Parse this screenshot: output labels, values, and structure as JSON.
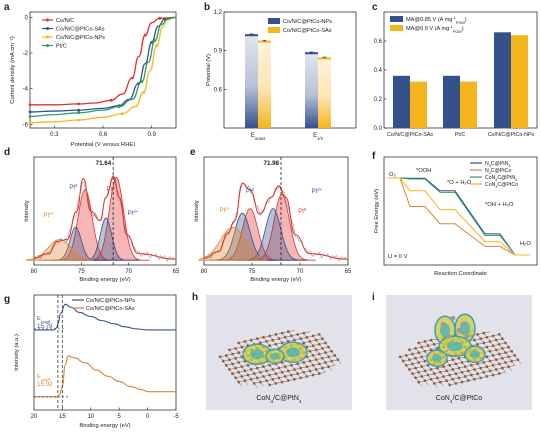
{
  "panel_letters": [
    "a",
    "b",
    "c",
    "d",
    "e",
    "f",
    "g",
    "h",
    "i"
  ],
  "colors": {
    "red": "#e0302d",
    "blue": "#34518c",
    "yellow": "#f5b51c",
    "green": "#2e9e6f",
    "orange": "#e0832f",
    "gray": "#9c9c9c",
    "purple": "#8a7fb4"
  },
  "chart_data": [
    {
      "panel": "a",
      "type": "line",
      "xlabel": "Potential (V versus RHE)",
      "ylabel": "Current density (mA cm⁻²)",
      "xticks": [
        "0.3",
        "0.6",
        "0.9"
      ],
      "yticks": [
        "0",
        "-2",
        "-4",
        "-6"
      ],
      "xlim": [
        0.15,
        1.05
      ],
      "ylim": [
        -6.2,
        0.3
      ],
      "series": [
        {
          "name": "Co/N/C",
          "color": "#e0302d",
          "x": [
            0.15,
            0.3,
            0.45,
            0.55,
            0.65,
            0.72,
            0.78,
            0.82,
            0.86,
            0.9,
            0.95,
            1.05
          ],
          "y": [
            -4.9,
            -4.9,
            -4.85,
            -4.8,
            -4.65,
            -4.3,
            -3.4,
            -2.2,
            -1.0,
            -0.3,
            -0.05,
            0
          ]
        },
        {
          "name": "Co/N/C@PtCo-SAs",
          "color": "#34518c",
          "x": [
            0.15,
            0.3,
            0.45,
            0.6,
            0.7,
            0.76,
            0.82,
            0.86,
            0.9,
            0.94,
            0.98,
            1.05
          ],
          "y": [
            -5.3,
            -5.25,
            -5.2,
            -5.1,
            -4.95,
            -4.6,
            -3.7,
            -2.6,
            -1.4,
            -0.5,
            -0.1,
            0
          ]
        },
        {
          "name": "Co/N/C@PtCo-NPs",
          "color": "#f5b51c",
          "x": [
            0.15,
            0.3,
            0.45,
            0.6,
            0.72,
            0.8,
            0.85,
            0.89,
            0.93,
            0.97,
            1.0,
            1.05
          ],
          "y": [
            -5.9,
            -5.85,
            -5.75,
            -5.6,
            -5.4,
            -5.0,
            -4.2,
            -3.0,
            -1.6,
            -0.5,
            -0.1,
            0
          ]
        },
        {
          "name": "Pt/C",
          "color": "#2e9e6f",
          "x": [
            0.15,
            0.3,
            0.45,
            0.6,
            0.7,
            0.78,
            0.84,
            0.88,
            0.92,
            0.96,
            1.0,
            1.05
          ],
          "y": [
            -5.55,
            -5.45,
            -5.35,
            -5.2,
            -5.0,
            -4.6,
            -3.6,
            -2.5,
            -1.3,
            -0.4,
            -0.08,
            0
          ]
        }
      ]
    },
    {
      "panel": "b",
      "type": "bar",
      "ylabel": "Potential (V)",
      "categories": [
        "Eonset",
        "E1/2"
      ],
      "category_labels": [
        {
          "main": "E",
          "sub": "onset"
        },
        {
          "main": "E",
          "sub": "1/2"
        }
      ],
      "yticks": [
        "0.6",
        "0.9",
        "1.2"
      ],
      "ylim": [
        0.3,
        1.2
      ],
      "series": [
        {
          "name": "Co/N/C@PtCo-NPs",
          "color": "#34518c",
          "values": [
            1.02,
            0.88
          ],
          "errors": [
            0.01,
            0.01
          ]
        },
        {
          "name": "Co/N/C@PtCo-SAs",
          "color": "#f5b51c",
          "values": [
            0.97,
            0.84
          ],
          "errors": [
            0.01,
            0.01
          ]
        }
      ]
    },
    {
      "panel": "c",
      "type": "bar",
      "categories": [
        "Co/N/C@PtCo-SAs",
        "Pt/C",
        "Co/N/C@PtCo-NPs"
      ],
      "yticks": [
        "0.0",
        "0.2",
        "0.4",
        "0.6"
      ],
      "ylim": [
        0,
        0.8
      ],
      "series": [
        {
          "name": "MA@0.85 V (A mg⁻¹ PGM)",
          "label": "MA@0.85 V (A mg",
          "unit_sup": "-1",
          "unit_sub": "PGM",
          "color": "#34518c",
          "values": [
            0.36,
            0.36,
            0.66
          ]
        },
        {
          "name": "MA@0.9 V (A mg⁻¹ PGM)",
          "label": "MA@0.9 V (A mg",
          "unit_sup": "-1",
          "unit_sub": "PGM",
          "color": "#f5b51c",
          "values": [
            0.32,
            0.32,
            0.64
          ]
        }
      ]
    },
    {
      "panel": "d",
      "type": "line",
      "xlabel": "Binding energy (eV)",
      "ylabel": "Intensity",
      "xticks": [
        "80",
        "75",
        "70",
        "65"
      ],
      "xlim": [
        80,
        65
      ],
      "marker": "71.64",
      "peak_labels": [
        {
          "text": "Pt",
          "sup": "0",
          "x": 71.7,
          "color": "#e0302d"
        },
        {
          "text": "Pt",
          "sup": "0",
          "x": 75.0,
          "color": "#34518c"
        },
        {
          "text": "Pt",
          "sup": "2+",
          "x": 77.8,
          "color": "#e0832f"
        },
        {
          "text": "Pt",
          "sup": "2+",
          "x": 70.6,
          "color": "#34518c"
        }
      ],
      "components": [
        {
          "color": "#e0302d",
          "peaks": [
            [
              71.3,
              0.88,
              0.75
            ],
            [
              74.6,
              0.75,
              0.75
            ]
          ]
        },
        {
          "color": "#34518c",
          "peaks": [
            [
              72.4,
              0.45,
              0.6
            ],
            [
              75.6,
              0.35,
              0.6
            ]
          ]
        },
        {
          "color": "#e0832f",
          "peaks": [
            [
              77.3,
              0.22,
              1.2
            ]
          ]
        }
      ],
      "envelope": [
        [
          80,
          0.05
        ],
        [
          78.5,
          0.1
        ],
        [
          77.5,
          0.23
        ],
        [
          76.5,
          0.25
        ],
        [
          75.5,
          0.55
        ],
        [
          74.8,
          0.9
        ],
        [
          74,
          0.55
        ],
        [
          73,
          0.45
        ],
        [
          72.4,
          0.7
        ],
        [
          71.6,
          0.92
        ],
        [
          71,
          0.7
        ],
        [
          70.2,
          0.3
        ],
        [
          69,
          0.1
        ],
        [
          65,
          0.04
        ]
      ]
    },
    {
      "panel": "e",
      "type": "line",
      "xlabel": "Binding energy (eV)",
      "ylabel": "Intensity",
      "xticks": [
        "80",
        "75",
        "70",
        "65"
      ],
      "xlim": [
        80,
        65
      ],
      "marker": "71.98",
      "peak_labels": [
        {
          "text": "Pt",
          "sup": "0",
          "x": 74.8,
          "color": "#34518c"
        },
        {
          "text": "Pt",
          "sup": "2+",
          "x": 77.0,
          "color": "#e0832f"
        },
        {
          "text": "Pt",
          "sup": "2+",
          "x": 69.7,
          "color": "#34518c"
        },
        {
          "text": "Pt",
          "sup": "0",
          "x": 70.6,
          "color": "#e0302d"
        }
      ],
      "components": [
        {
          "color": "#e0302d",
          "peaks": [
            [
              71.9,
              0.7,
              0.8
            ],
            [
              75.2,
              0.55,
              0.8
            ]
          ]
        },
        {
          "color": "#34518c",
          "peaks": [
            [
              72.8,
              0.55,
              0.8
            ],
            [
              76.0,
              0.5,
              0.8
            ]
          ]
        },
        {
          "color": "#e0832f",
          "peaks": [
            [
              77.0,
              0.35,
              1.3
            ]
          ]
        }
      ],
      "envelope": [
        [
          80,
          0.05
        ],
        [
          78.5,
          0.12
        ],
        [
          77.5,
          0.32
        ],
        [
          76.8,
          0.45
        ],
        [
          76,
          0.85
        ],
        [
          75.2,
          0.78
        ],
        [
          74.2,
          0.52
        ],
        [
          73,
          0.7
        ],
        [
          72.2,
          0.82
        ],
        [
          71.5,
          0.7
        ],
        [
          70.5,
          0.3
        ],
        [
          69,
          0.1
        ],
        [
          65,
          0.04
        ]
      ]
    },
    {
      "panel": "f",
      "type": "line",
      "xlabel": "Reaction Coordinate",
      "ylabel": "Free Energy (eV)",
      "annotations": [
        "O₂",
        "*OOH",
        "*O + H₂O",
        "*OH + H₂O",
        "H₂O",
        "U = 0 V"
      ],
      "legend": [
        {
          "label": "N",
          "sub": "4",
          "suffix": "C@PtN",
          "tail_sub": "4",
          "color": "#34518c"
        },
        {
          "label": "N",
          "sub": "4",
          "suffix": "C@PtCo",
          "tail_sub": "",
          "color": "#e0832f"
        },
        {
          "label": "CoN",
          "sub": "4",
          "suffix": "C@PtN",
          "tail_sub": "4",
          "color": "#2e9e6f"
        },
        {
          "label": "CoN",
          "sub": "4",
          "suffix": "C@PtCo",
          "tail_sub": "",
          "color": "#f5b51c"
        }
      ],
      "series": [
        {
          "name": "N4C@PtN4",
          "color": "#34518c",
          "y": [
            4.92,
            4.9,
            4.1,
            1.35,
            0
          ]
        },
        {
          "name": "N4C@PtCo",
          "color": "#e0832f",
          "y": [
            4.92,
            3.1,
            2.0,
            0.55,
            0
          ]
        },
        {
          "name": "CoN4C@PtN4",
          "color": "#2e9e6f",
          "y": [
            4.92,
            4.85,
            4.0,
            1.25,
            0
          ]
        },
        {
          "name": "CoN4C@PtCo",
          "color": "#f5b51c",
          "y": [
            4.92,
            4.1,
            2.9,
            0.85,
            0
          ]
        }
      ]
    },
    {
      "panel": "g",
      "type": "line",
      "xlabel": "Binding energy (eV)",
      "ylabel": "Intensity (a.u.)",
      "xticks": [
        "20",
        "15",
        "10",
        "5",
        "0",
        "-5"
      ],
      "xlim": [
        20,
        -5
      ],
      "series": [
        {
          "name": "Co/N/C@PtCo-NPs",
          "color": "#34518c",
          "cutoff_label": "15.79",
          "x": [
            20,
            18,
            16.5,
            16,
            15.79,
            15.3,
            14.5,
            13.5,
            12,
            10,
            8,
            6,
            4,
            2,
            0,
            -5
          ],
          "y": [
            0.7,
            0.7,
            0.7,
            0.72,
            0.76,
            0.86,
            0.95,
            0.92,
            0.87,
            0.83,
            0.79,
            0.76,
            0.73,
            0.71,
            0.7,
            0.7
          ]
        },
        {
          "name": "Co/N/C@PtCo-SAs",
          "color": "#e0832f",
          "cutoff_label": "15.02",
          "x": [
            20,
            18,
            16,
            15.5,
            15.02,
            14.5,
            14,
            13,
            11,
            9,
            7,
            5,
            3,
            1,
            0,
            -5
          ],
          "y": [
            0.05,
            0.05,
            0.05,
            0.07,
            0.15,
            0.36,
            0.45,
            0.43,
            0.38,
            0.31,
            0.25,
            0.2,
            0.15,
            0.12,
            0.1,
            0.1
          ]
        }
      ]
    }
  ],
  "panel_a": {
    "legend": [
      "Co/N/C",
      "Co/N/C@PtCo-SAs",
      "Co/N/C@PtCo-NPs",
      "Pt/C"
    ]
  },
  "panel_b": {
    "legend": [
      "Co/N/C@PtCo-NPs",
      "Co/N/C@PtCo-SAs"
    ]
  },
  "panel_f": {
    "xlabel": "Reaction Coordinate",
    "ylabel": "Free Energy (eV)"
  },
  "panel_g": {
    "ecutoff": "E",
    "ecutoff_sub": "cutoff"
  },
  "panel_h": {
    "caption": "CoN",
    "caption_sub": "4",
    "caption_tail": "/C@PtN",
    "caption_tail_sub": "4"
  },
  "panel_i": {
    "caption": "CoN",
    "caption_sub": "4",
    "caption_tail": "/C@PtCo",
    "caption_tail_sub": ""
  }
}
